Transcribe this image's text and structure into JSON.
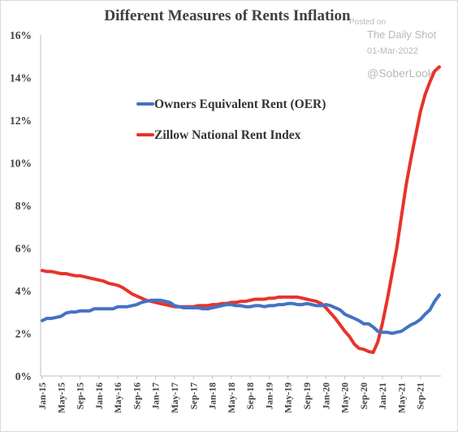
{
  "chart_data": {
    "type": "line",
    "title": "Different Measures of Rents Inflation",
    "y_ticks": [
      "0%",
      "2%",
      "4%",
      "6%",
      "8%",
      "10%",
      "12%",
      "14%",
      "16%"
    ],
    "ylim": [
      0,
      16
    ],
    "x_ticks": [
      "Jan-15",
      "May-15",
      "Sep-15",
      "Jan-16",
      "May-16",
      "Sep-16",
      "Jan-17",
      "May-17",
      "Sep-17",
      "Jan-18",
      "May-18",
      "Sep-18",
      "Jan-19",
      "May-19",
      "Sep-19",
      "Jan-20",
      "May-20",
      "Sep-20",
      "Jan-21",
      "May-21",
      "Sep-21"
    ],
    "x_start": "Jan-15",
    "x_end": "Jan-22",
    "grid": false,
    "legend_position": "center-left",
    "series": [
      {
        "name": "Owners Equivalent Rent (OER)",
        "color": "#4472c4",
        "values": [
          2.6,
          2.7,
          2.7,
          2.75,
          2.8,
          2.95,
          3.0,
          3.0,
          3.05,
          3.05,
          3.05,
          3.15,
          3.15,
          3.15,
          3.15,
          3.15,
          3.25,
          3.25,
          3.25,
          3.3,
          3.35,
          3.45,
          3.5,
          3.55,
          3.55,
          3.55,
          3.5,
          3.45,
          3.3,
          3.25,
          3.2,
          3.2,
          3.2,
          3.2,
          3.15,
          3.15,
          3.2,
          3.25,
          3.3,
          3.35,
          3.35,
          3.3,
          3.3,
          3.25,
          3.25,
          3.3,
          3.3,
          3.25,
          3.3,
          3.3,
          3.35,
          3.35,
          3.4,
          3.4,
          3.35,
          3.35,
          3.4,
          3.35,
          3.3,
          3.3,
          3.35,
          3.3,
          3.2,
          3.1,
          2.9,
          2.8,
          2.7,
          2.6,
          2.45,
          2.45,
          2.3,
          2.1,
          2.05,
          2.05,
          2.0,
          2.05,
          2.1,
          2.25,
          2.4,
          2.5,
          2.65,
          2.9,
          3.1,
          3.5,
          3.8
        ]
      },
      {
        "name": "Zillow National Rent Index",
        "color": "#e8332a",
        "values": [
          4.95,
          4.9,
          4.9,
          4.85,
          4.8,
          4.8,
          4.75,
          4.7,
          4.7,
          4.65,
          4.6,
          4.55,
          4.5,
          4.45,
          4.35,
          4.3,
          4.25,
          4.15,
          4.0,
          3.85,
          3.75,
          3.65,
          3.55,
          3.5,
          3.45,
          3.4,
          3.35,
          3.3,
          3.25,
          3.25,
          3.25,
          3.25,
          3.25,
          3.3,
          3.3,
          3.3,
          3.35,
          3.35,
          3.4,
          3.4,
          3.45,
          3.45,
          3.5,
          3.5,
          3.55,
          3.6,
          3.6,
          3.6,
          3.65,
          3.65,
          3.7,
          3.7,
          3.7,
          3.7,
          3.7,
          3.65,
          3.6,
          3.55,
          3.5,
          3.4,
          3.2,
          2.95,
          2.7,
          2.4,
          2.1,
          1.85,
          1.5,
          1.3,
          1.25,
          1.15,
          1.1,
          1.6,
          2.5,
          3.6,
          4.8,
          6.0,
          7.5,
          9.0,
          10.2,
          11.3,
          12.4,
          13.2,
          13.8,
          14.3,
          14.5
        ]
      }
    ]
  },
  "watermark": {
    "posted_on": "Posted on",
    "source": "The Daily Shot",
    "date": "01-Mar-2022",
    "handle": "@SoberLook"
  }
}
